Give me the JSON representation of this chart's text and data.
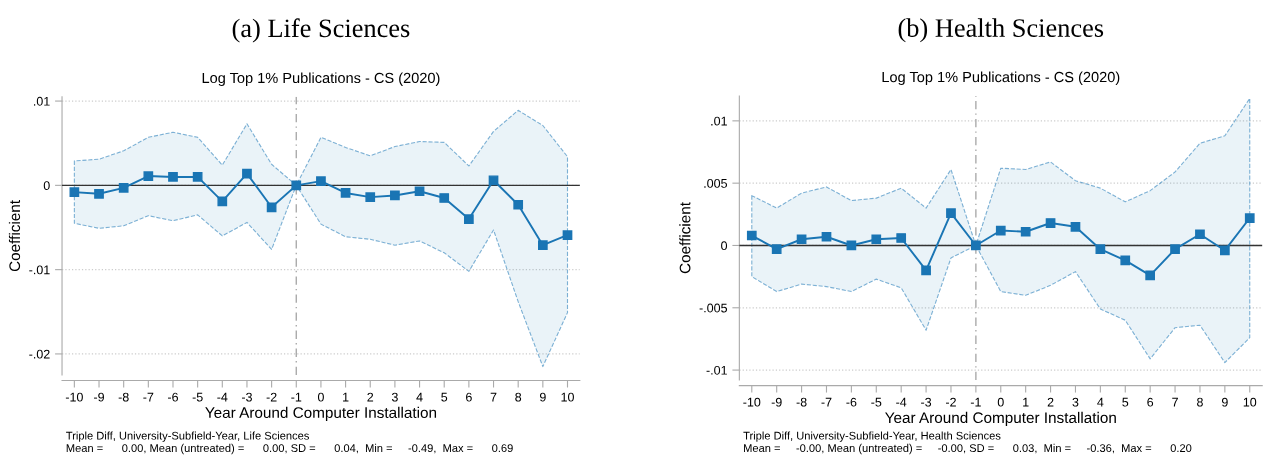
{
  "chart_data": [
    {
      "type": "line",
      "title": "(a) Life Sciences",
      "subtitle": "Log Top 1% Publications - CS (2020)",
      "xlabel": "Year Around Computer Installation",
      "ylabel": "Coefficient",
      "x": [
        -10,
        -9,
        -8,
        -7,
        -6,
        -5,
        -4,
        -3,
        -2,
        -1,
        0,
        1,
        2,
        3,
        4,
        5,
        6,
        7,
        8,
        9,
        10
      ],
      "series": [
        {
          "color": "#1a75b4",
          "values": [
            -0.0008,
            -0.001,
            -0.0003,
            0.0011,
            0.001,
            0.001,
            -0.0019,
            0.0014,
            -0.0026,
            0,
            0.0005,
            -0.0009,
            -0.0014,
            -0.0012,
            -0.0007,
            -0.0015,
            -0.004,
            0.0006,
            -0.0023,
            -0.0071,
            -0.0059
          ],
          "upper": [
            0.0029,
            0.0031,
            0.0041,
            0.0057,
            0.0063,
            0.0057,
            0.0024,
            0.0073,
            0.0025,
            0,
            0.0057,
            0.0045,
            0.0035,
            0.0046,
            0.0052,
            0.0051,
            0.0023,
            0.0064,
            0.0089,
            0.0071,
            0.0034
          ],
          "lower": [
            -0.0045,
            -0.0051,
            -0.0048,
            -0.0036,
            -0.0042,
            -0.0035,
            -0.006,
            -0.0044,
            -0.0076,
            0,
            -0.0046,
            -0.0061,
            -0.0064,
            -0.0071,
            -0.0066,
            -0.008,
            -0.0102,
            -0.0053,
            -0.0138,
            -0.0215,
            -0.0151
          ]
        }
      ],
      "xlim": [
        -10.5,
        10.5
      ],
      "xticks": [
        -10,
        -9,
        -8,
        -7,
        -6,
        -5,
        -4,
        -3,
        -2,
        -1,
        0,
        1,
        2,
        3,
        4,
        5,
        6,
        7,
        8,
        9,
        10
      ],
      "ylim": [
        -0.0225,
        0.0105
      ],
      "yticks": [
        {
          "value": -0.02,
          "label": "-.02"
        },
        {
          "value": -0.01,
          "label": "-.01"
        },
        0,
        {
          "value": 0.01,
          "label": ".01"
        }
      ],
      "grid": "y",
      "marker": "square",
      "line_style": "solid",
      "legend": false,
      "ref_lines": [
        {
          "axis": "y",
          "value": 0,
          "color": "#333333",
          "line_style": "solid"
        },
        {
          "axis": "x",
          "value": -1,
          "color": "#aaaaaa",
          "line_style": "dashed"
        }
      ],
      "annotations": [
        "Triple Diff, University-Subfield-Year, Life Sciences",
        "Mean =      0.00, Mean (untreated) =      0.00, SD =      0.04,  Min =     -0.49,  Max =      0.69"
      ]
    },
    {
      "type": "line",
      "title": "(b) Health Sciences",
      "subtitle": "Log Top 1% Publications - CS (2020)",
      "xlabel": "Year Around Computer Installation",
      "ylabel": "Coefficient",
      "x": [
        -10,
        -9,
        -8,
        -7,
        -6,
        -5,
        -4,
        -3,
        -2,
        -1,
        0,
        1,
        2,
        3,
        4,
        5,
        6,
        7,
        8,
        9,
        10
      ],
      "series": [
        {
          "color": "#1a75b4",
          "values": [
            0.0008,
            -0.0003,
            0.0005,
            0.0007,
            0,
            0.0005,
            0.0006,
            -0.002,
            0.0026,
            0,
            0.0012,
            0.0011,
            0.0018,
            0.0015,
            -0.0003,
            -0.0012,
            -0.0024,
            -0.0003,
            0.0009,
            -0.0004,
            0.0022
          ],
          "upper": [
            0.004,
            0.003,
            0.0042,
            0.0047,
            0.0036,
            0.0038,
            0.0046,
            0.003,
            0.0061,
            0,
            0.0062,
            0.0061,
            0.0067,
            0.0052,
            0.0046,
            0.0035,
            0.0044,
            0.0059,
            0.0082,
            0.0088,
            0.0118
          ],
          "lower": [
            -0.0025,
            -0.0037,
            -0.0031,
            -0.0033,
            -0.0037,
            -0.0027,
            -0.0034,
            -0.0068,
            -0.001,
            0,
            -0.0037,
            -0.004,
            -0.0032,
            -0.0021,
            -0.0051,
            -0.006,
            -0.0091,
            -0.0066,
            -0.0064,
            -0.0094,
            -0.0074
          ]
        }
      ],
      "xlim": [
        -10.5,
        10.5
      ],
      "xticks": [
        -10,
        -9,
        -8,
        -7,
        -6,
        -5,
        -4,
        -3,
        -2,
        -1,
        0,
        1,
        2,
        3,
        4,
        5,
        6,
        7,
        8,
        9,
        10
      ],
      "ylim": [
        -0.0108,
        0.012
      ],
      "yticks": [
        {
          "value": -0.01,
          "label": "-.01"
        },
        {
          "value": -0.005,
          "label": "-.005"
        },
        0,
        {
          "value": 0.005,
          "label": ".005"
        },
        {
          "value": 0.01,
          "label": ".01"
        }
      ],
      "grid": "y",
      "marker": "square",
      "line_style": "solid",
      "legend": false,
      "ref_lines": [
        {
          "axis": "y",
          "value": 0,
          "color": "#333333",
          "line_style": "solid"
        },
        {
          "axis": "x",
          "value": -1,
          "color": "#aaaaaa",
          "line_style": "dashed"
        }
      ],
      "annotations": [
        "Triple Diff, University-Subfield-Year, Health Sciences",
        "Mean =     -0.00, Mean (untreated) =     -0.00, SD =      0.03,  Min =     -0.36,  Max =      0.20"
      ]
    }
  ]
}
